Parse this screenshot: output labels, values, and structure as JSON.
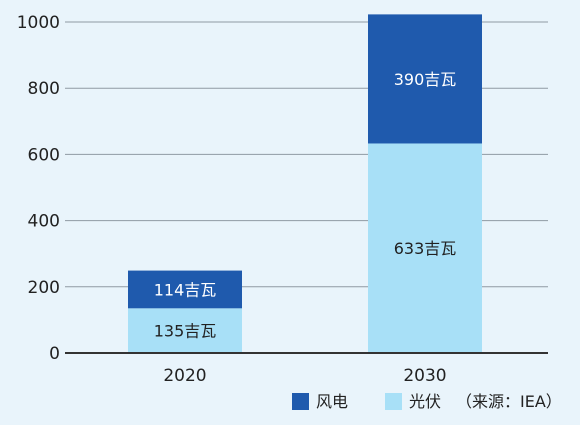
{
  "chart_data": {
    "type": "bar",
    "stacked": true,
    "categories": [
      "2020",
      "2030"
    ],
    "series": [
      {
        "name": "光伏",
        "values": [
          135,
          633
        ],
        "labels": [
          "135吉瓦",
          "633吉瓦"
        ],
        "color": "#a8e0f7"
      },
      {
        "name": "风电",
        "values": [
          114,
          390
        ],
        "labels": [
          "114吉瓦",
          "390吉瓦"
        ],
        "color": "#1f5aad"
      }
    ],
    "ylim": [
      0,
      1000
    ],
    "yticks": [
      0,
      200,
      400,
      600,
      800,
      1000
    ],
    "grid": true,
    "legend_position": "bottom-right",
    "source_note": "（来源：IEA）"
  }
}
